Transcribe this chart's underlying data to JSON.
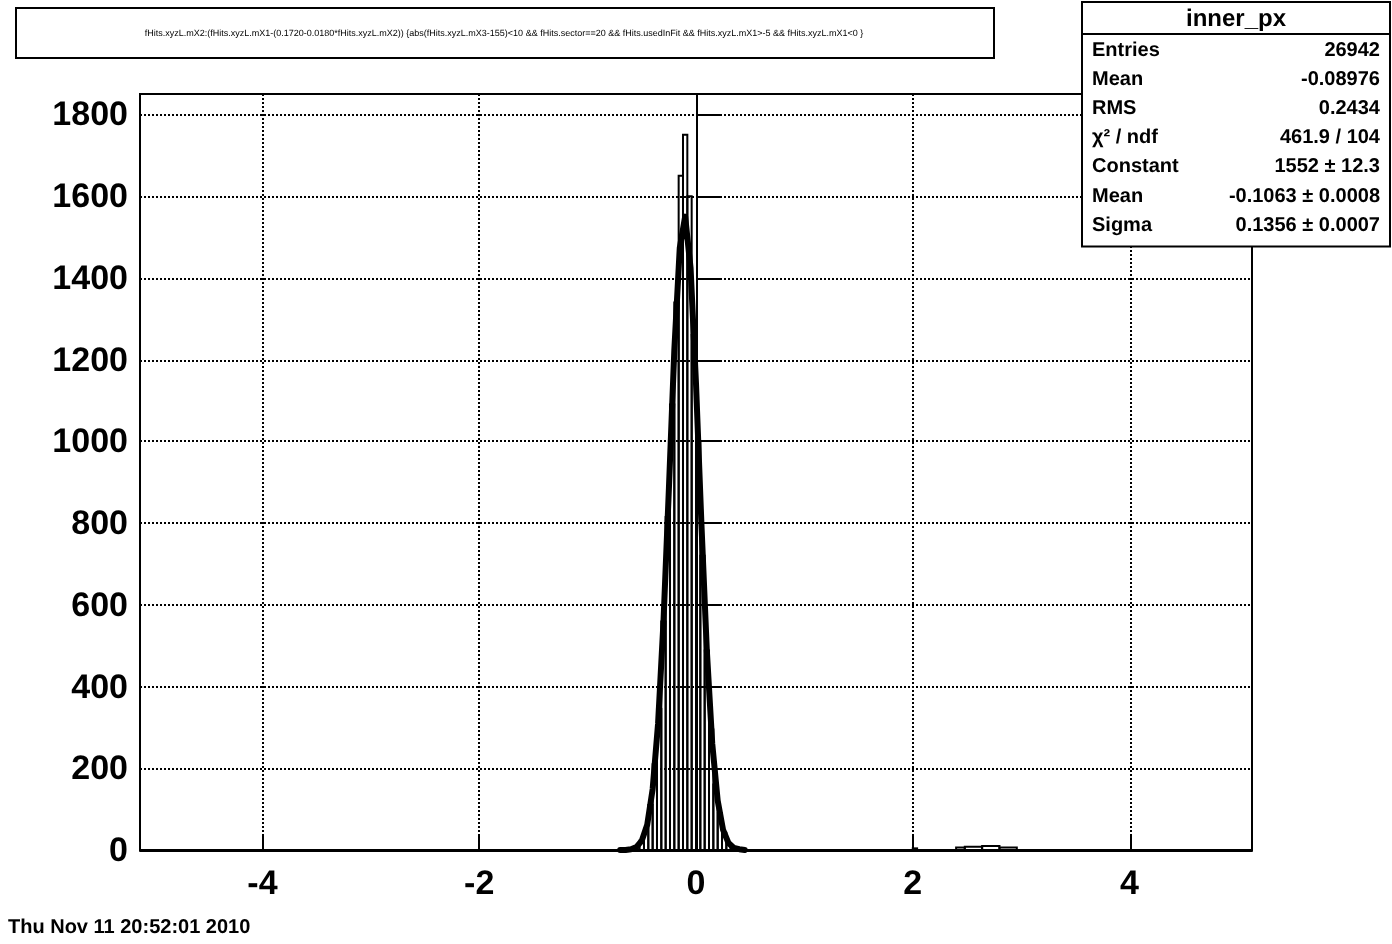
{
  "chart_data": {
    "type": "histogram",
    "title": "fHits.xyzL.mX2:(fHits.xyzL.mX1-(0.1720-0.0180*fHits.xyzL.mX2)) {abs(fHits.xyzL.mX3-155)<10 && fHits.sector==20 && fHits.usedInFit && fHits.xyzL.mX1>-5 && fHits.xyzL.mX1<0 }",
    "bins": [
      -5.13,
      -0.8,
      -0.76,
      -0.72,
      -0.68,
      -0.64,
      -0.6,
      -0.56,
      -0.52,
      -0.48,
      -0.44,
      -0.4,
      -0.36,
      -0.32,
      -0.28,
      -0.24,
      -0.2,
      -0.16,
      -0.12,
      -0.08,
      -0.04,
      0,
      0.04,
      0.08,
      0.12,
      0.16,
      0.2,
      0.24,
      0.28,
      0.32,
      0.36,
      0.4,
      0.44,
      0.48,
      0.52,
      0.56,
      0.6,
      2.0,
      2.04,
      2.4,
      2.48,
      2.64,
      2.8,
      2.96,
      3.04,
      5.13
    ],
    "values": [
      0,
      0,
      0,
      0,
      0,
      0,
      0,
      0,
      23,
      52,
      110,
      210,
      345,
      559,
      815,
      1090,
      1340,
      1650,
      1750,
      1600,
      1260,
      1000,
      720,
      488,
      295,
      160,
      90,
      42,
      17,
      6,
      2,
      1,
      0,
      0,
      0,
      0,
      0,
      4,
      0,
      6,
      8,
      10,
      6,
      0,
      0
    ],
    "color": "#000000",
    "series": [
      {
        "type": "line",
        "color": "#000000",
        "x": [
          -0.7,
          -0.65,
          -0.6,
          -0.55,
          -0.5,
          -0.45,
          -0.4,
          -0.35,
          -0.3,
          -0.25,
          -0.2,
          -0.15,
          -0.1,
          -0.05,
          0,
          0.05,
          0.1,
          0.15,
          0.2,
          0.25,
          0.3,
          0.35,
          0.4,
          0.45
        ],
        "values": [
          0,
          0,
          2,
          7,
          23,
          62,
          149,
          309,
          559,
          885,
          1223,
          1473,
          1550,
          1424,
          1141,
          798,
          488,
          260,
          121,
          49,
          17,
          5,
          2,
          0
        ]
      }
    ],
    "xlim": [
      -5.13,
      5.13
    ],
    "xticks": [
      -4,
      -2,
      0,
      2,
      4
    ],
    "ylim": [
      0,
      1850
    ],
    "yticks": [
      0,
      200,
      400,
      600,
      800,
      1000,
      1200,
      1400,
      1600,
      1800
    ],
    "grid": true,
    "annotations": [
      "Thu Nov 11 20:52:01 2010",
      "inner_px",
      "Entries",
      "26942",
      "Mean",
      "-0.08976",
      "RMS",
      "0.2434",
      "χ² / ndf",
      "461.9 / 104",
      "Constant",
      "1552 ± 12.3",
      "Mean",
      "-0.1063 ± 0.0008",
      "Sigma",
      "0.1356 ± 0.0007"
    ]
  }
}
